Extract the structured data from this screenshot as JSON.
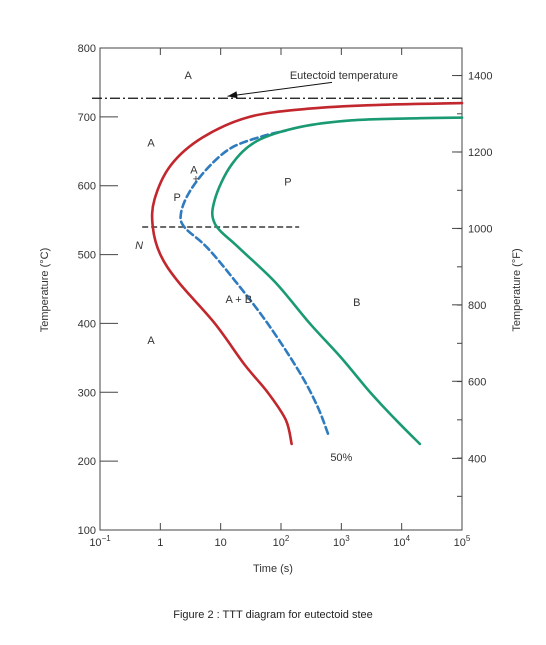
{
  "caption": "Figure 2 : TTT diagram for eutectoid stee",
  "chart_data": {
    "type": "line",
    "xlabel": "Time (s)",
    "ylabel_left": "Temperature (°C)",
    "ylabel_right": "Temperature (°F)",
    "x_scale": "log",
    "xlim": [
      0.1,
      100000
    ],
    "ylim": [
      100,
      800
    ],
    "x_ticks": [
      {
        "value": 0.1,
        "base": "10",
        "exp": "−1"
      },
      {
        "value": 1,
        "base": "1",
        "exp": ""
      },
      {
        "value": 10,
        "base": "10",
        "exp": ""
      },
      {
        "value": 100,
        "base": "10",
        "exp": "2"
      },
      {
        "value": 1000,
        "base": "10",
        "exp": "3"
      },
      {
        "value": 10000,
        "base": "10",
        "exp": "4"
      },
      {
        "value": 100000,
        "base": "10",
        "exp": "5"
      }
    ],
    "y_ticks_left": [
      {
        "value": 100,
        "label": "100"
      },
      {
        "value": 200,
        "label": "200"
      },
      {
        "value": 300,
        "label": "300"
      },
      {
        "value": 400,
        "label": "400"
      },
      {
        "value": 500,
        "label": "500"
      },
      {
        "value": 600,
        "label": "600"
      },
      {
        "value": 700,
        "label": "700"
      },
      {
        "value": 800,
        "label": "800"
      }
    ],
    "y_ticks_right": [
      {
        "value": 204,
        "label": "400"
      },
      {
        "value": 316,
        "label": "600"
      },
      {
        "value": 427,
        "label": "800"
      },
      {
        "value": 538,
        "label": "1000"
      },
      {
        "value": 649,
        "label": "1200"
      },
      {
        "value": 760,
        "label": "1400"
      }
    ],
    "eutectoid": {
      "temperature": 727,
      "label": "Eutectoid temperature"
    },
    "isothermal_line": {
      "temperature": 540,
      "x_start": 0.5,
      "x_end": 200
    },
    "series": [
      {
        "key": "start",
        "color": "#c1272d",
        "style": "solid",
        "points": [
          [
            150,
            225
          ],
          [
            120,
            260
          ],
          [
            60,
            300
          ],
          [
            25,
            340
          ],
          [
            8,
            400
          ],
          [
            2,
            460
          ],
          [
            1.0,
            500
          ],
          [
            0.75,
            540
          ],
          [
            0.8,
            580
          ],
          [
            1.5,
            630
          ],
          [
            5,
            670
          ],
          [
            30,
            700
          ],
          [
            300,
            712
          ],
          [
            3000,
            717
          ],
          [
            100000,
            720
          ]
        ]
      },
      {
        "key": "half",
        "name": "50%",
        "color": "#2f7bbf",
        "style": "dashed",
        "points": [
          [
            600,
            240
          ],
          [
            400,
            280
          ],
          [
            200,
            330
          ],
          [
            60,
            400
          ],
          [
            18,
            460
          ],
          [
            6,
            510
          ],
          [
            2.5,
            540
          ],
          [
            2.2,
            560
          ],
          [
            3,
            590
          ],
          [
            6,
            625
          ],
          [
            15,
            655
          ],
          [
            50,
            672
          ],
          [
            120,
            680
          ]
        ]
      },
      {
        "key": "finish",
        "color": "#1a9a73",
        "style": "solid",
        "points": [
          [
            20000,
            225
          ],
          [
            8000,
            260
          ],
          [
            3000,
            300
          ],
          [
            1000,
            350
          ],
          [
            300,
            400
          ],
          [
            80,
            460
          ],
          [
            20,
            510
          ],
          [
            8,
            545
          ],
          [
            8,
            580
          ],
          [
            15,
            630
          ],
          [
            40,
            665
          ],
          [
            200,
            685
          ],
          [
            1500,
            695
          ],
          [
            20000,
            698
          ],
          [
            100000,
            699
          ]
        ]
      }
    ],
    "annotations": [
      {
        "text": "A",
        "x": 2.9,
        "y": 755
      },
      {
        "text": "A",
        "x": 0.7,
        "y": 657
      },
      {
        "text": "P",
        "x": 130,
        "y": 600
      },
      {
        "text": "P",
        "x": 1.9,
        "y": 578
      },
      {
        "text": "A",
        "x": 3.6,
        "y": 618
      },
      {
        "text": "+",
        "x": 3.9,
        "y": 605
      },
      {
        "text": "A + B",
        "x": 20,
        "y": 430
      },
      {
        "text": "B",
        "x": 1800,
        "y": 425
      },
      {
        "text": "A",
        "x": 0.7,
        "y": 370
      },
      {
        "text": "50%",
        "x": 1000,
        "y": 200
      }
    ]
  }
}
